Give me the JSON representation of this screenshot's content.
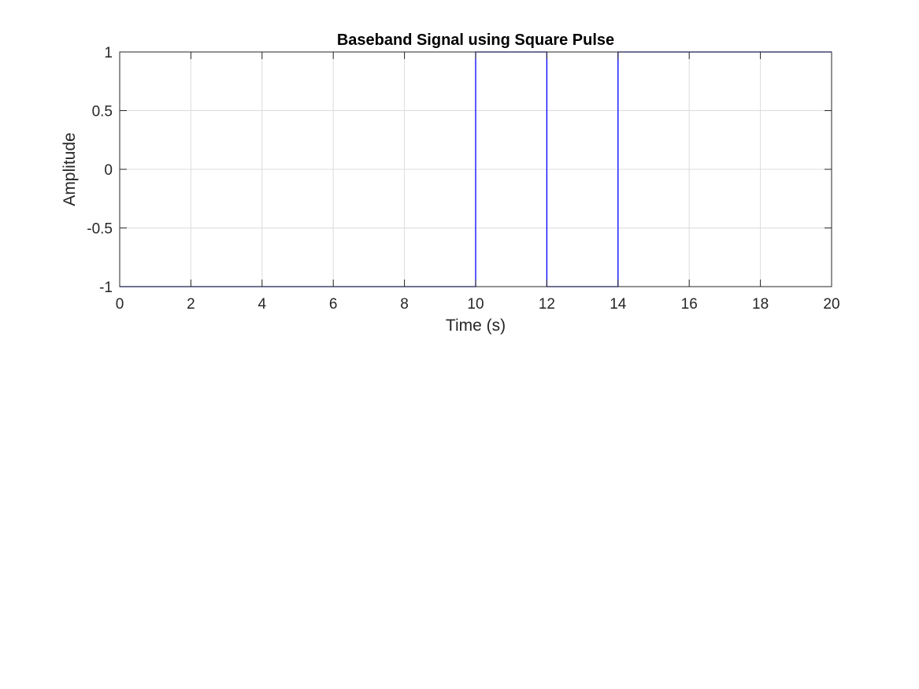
{
  "chart_data": {
    "type": "line",
    "title": "Baseband Signal using Square Pulse",
    "xlabel": "Time (s)",
    "ylabel": "Amplitude",
    "xlim": [
      0,
      20
    ],
    "ylim": [
      -1,
      1
    ],
    "xticks": [
      0,
      2,
      4,
      6,
      8,
      10,
      12,
      14,
      16,
      18,
      20
    ],
    "xtick_labels": [
      "0",
      "2",
      "4",
      "6",
      "8",
      "10",
      "12",
      "14",
      "16",
      "18",
      "20"
    ],
    "yticks": [
      -1,
      -0.5,
      0,
      0.5,
      1
    ],
    "ytick_labels": [
      "-1",
      "-0.5",
      "0",
      "0.5",
      "1"
    ],
    "grid": true,
    "legend": "none",
    "series": [
      {
        "color": "#0000ff",
        "x": [
          0,
          10,
          10,
          12,
          12,
          14,
          14,
          20
        ],
        "y": [
          -1,
          -1,
          1,
          1,
          -1,
          -1,
          1,
          1
        ]
      }
    ]
  }
}
